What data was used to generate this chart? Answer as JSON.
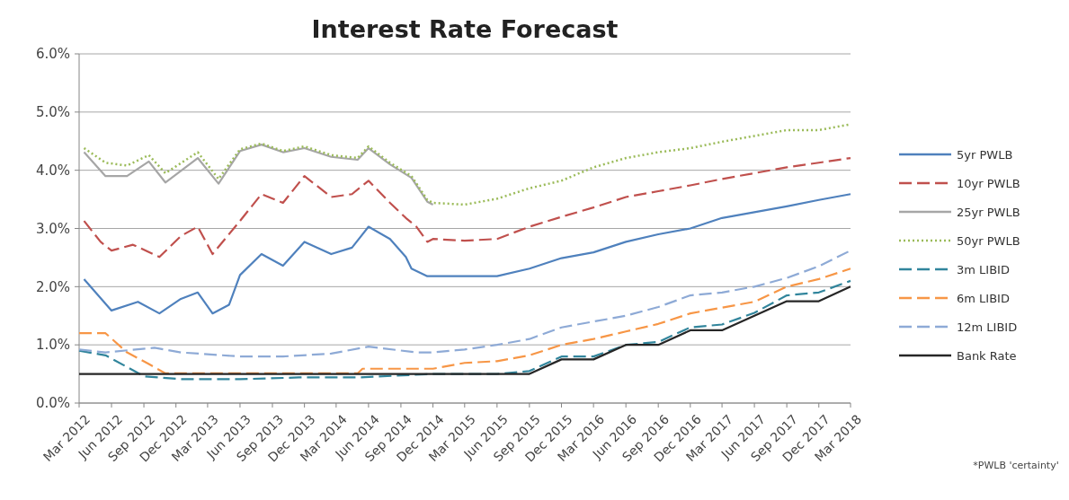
{
  "chart_data": {
    "type": "line",
    "title": "Interest Rate Forecast",
    "xlim": [
      "2012-03",
      "2018-03"
    ],
    "xticks": [
      {
        "value": "2012-03",
        "label": "Mar 2012"
      },
      {
        "value": "2012-06",
        "label": "Jun 2012"
      },
      {
        "value": "2012-09",
        "label": "Sep 2012"
      },
      {
        "value": "2012-12",
        "label": "Dec 2012"
      },
      {
        "value": "2013-03",
        "label": "Mar 2013"
      },
      {
        "value": "2013-06",
        "label": "Jun 2013"
      },
      {
        "value": "2013-09",
        "label": "Sep 2013"
      },
      {
        "value": "2013-12",
        "label": "Dec 2013"
      },
      {
        "value": "2014-03",
        "label": "Mar 2014"
      },
      {
        "value": "2014-06",
        "label": "Jun 2014"
      },
      {
        "value": "2014-09",
        "label": "Sep 2014"
      },
      {
        "value": "2014-12",
        "label": "Dec 2014"
      },
      {
        "value": "2015-03",
        "label": "Mar 2015"
      },
      {
        "value": "2015-06",
        "label": "Jun 2015"
      },
      {
        "value": "2015-09",
        "label": "Sep 2015"
      },
      {
        "value": "2015-12",
        "label": "Dec 2015"
      },
      {
        "value": "2016-03",
        "label": "Mar 2016"
      },
      {
        "value": "2016-06",
        "label": "Jun 2016"
      },
      {
        "value": "2016-09",
        "label": "Sep 2016"
      },
      {
        "value": "2016-12",
        "label": "Dec 2016"
      },
      {
        "value": "2017-03",
        "label": "Mar 2017"
      },
      {
        "value": "2017-06",
        "label": "Jun 2017"
      },
      {
        "value": "2017-09",
        "label": "Sep 2017"
      },
      {
        "value": "2017-12",
        "label": "Dec 2017"
      },
      {
        "value": "2018-03",
        "label": "Mar 2018"
      }
    ],
    "ylim": [
      0,
      6
    ],
    "yticks": [
      {
        "value": 0,
        "label": "0.0%"
      },
      {
        "value": 1,
        "label": "1.0%"
      },
      {
        "value": 2,
        "label": "2.0%"
      },
      {
        "value": 3,
        "label": "3.0%"
      },
      {
        "value": 4,
        "label": "4.0%"
      },
      {
        "value": 5,
        "label": "5.0%"
      },
      {
        "value": 6,
        "label": "6.0%"
      }
    ],
    "grid": "y",
    "legend": "right",
    "annotations": [
      "*PWLB 'certainty'"
    ],
    "series": [
      {
        "name": "5yr PWLB",
        "color": "#4f81bd",
        "line_style": "solid",
        "x": [
          "2012-03-15",
          "2012-06",
          "2012-08-15",
          "2012-10-15",
          "2012-12-15",
          "2013-02",
          "2013-03-15",
          "2013-05",
          "2013-06",
          "2013-08",
          "2013-10",
          "2013-12",
          "2014-02-15",
          "2014-04-15",
          "2014-06",
          "2014-08",
          "2014-09-15",
          "2014-10",
          "2014-11-15",
          "2014-12",
          "2015-03",
          "2015-06",
          "2015-09",
          "2015-12",
          "2016-03",
          "2016-06",
          "2016-09",
          "2016-12",
          "2017-03",
          "2017-06",
          "2017-09",
          "2017-12",
          "2018-03"
        ],
        "values": [
          2.13,
          1.59,
          1.74,
          1.54,
          1.79,
          1.9,
          1.54,
          1.69,
          2.2,
          2.56,
          2.36,
          2.77,
          2.56,
          2.67,
          3.03,
          2.82,
          2.51,
          2.31,
          2.18,
          2.18,
          2.18,
          2.18,
          2.31,
          2.49,
          2.59,
          2.77,
          2.9,
          3.0,
          3.18,
          3.28,
          3.38,
          3.49,
          3.59
        ]
      },
      {
        "name": "10yr PWLB",
        "color": "#c0504d",
        "line_style": "dashed",
        "x": [
          "2012-03-15",
          "2012-05",
          "2012-06",
          "2012-08",
          "2012-10-15",
          "2012-12-15",
          "2013-02",
          "2013-03-15",
          "2013-06",
          "2013-08",
          "2013-10",
          "2013-12",
          "2014-02-15",
          "2014-04-15",
          "2014-06",
          "2014-08",
          "2014-09-15",
          "2014-10-15",
          "2014-11-15",
          "2014-12",
          "2015-03",
          "2015-06",
          "2015-09",
          "2015-12",
          "2016-03",
          "2016-06",
          "2016-09",
          "2016-12",
          "2017-03",
          "2017-06",
          "2017-09",
          "2017-12",
          "2018-03"
        ],
        "values": [
          3.13,
          2.77,
          2.62,
          2.72,
          2.51,
          2.87,
          3.03,
          2.56,
          3.13,
          3.59,
          3.44,
          3.9,
          3.54,
          3.59,
          3.82,
          3.44,
          3.18,
          3.03,
          2.77,
          2.82,
          2.79,
          2.82,
          3.03,
          3.2,
          3.36,
          3.54,
          3.64,
          3.74,
          3.85,
          3.95,
          4.05,
          4.13,
          4.21
        ]
      },
      {
        "name": "25yr PWLB",
        "color": "#a6a6a6",
        "line_style": "solid",
        "x": [
          "2012-03-15",
          "2012-05-15",
          "2012-07-15",
          "2012-09-15",
          "2012-11",
          "2013-02",
          "2013-04",
          "2013-06",
          "2013-08",
          "2013-10",
          "2013-12",
          "2014-02-15",
          "2014-05",
          "2014-06",
          "2014-08",
          "2014-10",
          "2014-11-15",
          "2014-12"
        ],
        "values": [
          4.31,
          3.9,
          3.9,
          4.15,
          3.79,
          4.21,
          3.77,
          4.33,
          4.44,
          4.31,
          4.38,
          4.23,
          4.18,
          4.38,
          4.1,
          3.87,
          3.46,
          3.41
        ]
      },
      {
        "name": "50yr PWLB",
        "color": "#9bbb59",
        "line_style": "dotted",
        "x": [
          "2012-03-15",
          "2012-05-15",
          "2012-07-15",
          "2012-09-15",
          "2012-11",
          "2013-02",
          "2013-04",
          "2013-06",
          "2013-08",
          "2013-10",
          "2013-12",
          "2014-02-15",
          "2014-05",
          "2014-06",
          "2014-08",
          "2014-10",
          "2014-11-15",
          "2014-12",
          "2015-03",
          "2015-06",
          "2015-09",
          "2015-12",
          "2016-03",
          "2016-06",
          "2016-09",
          "2016-12",
          "2017-03",
          "2017-06",
          "2017-09",
          "2017-12",
          "2018-03"
        ],
        "values": [
          4.38,
          4.13,
          4.08,
          4.26,
          3.95,
          4.31,
          3.85,
          4.36,
          4.46,
          4.33,
          4.41,
          4.26,
          4.21,
          4.41,
          4.13,
          3.9,
          3.49,
          3.44,
          3.41,
          3.51,
          3.69,
          3.82,
          4.05,
          4.21,
          4.31,
          4.38,
          4.49,
          4.59,
          4.69,
          4.69,
          4.79
        ]
      },
      {
        "name": "3m LIBID",
        "color": "#31859c",
        "line_style": "dashed",
        "x": [
          "2012-03",
          "2012-05-15",
          "2012-07-15",
          "2012-09",
          "2012-12-15",
          "2013-06",
          "2013-11-15",
          "2014-05",
          "2014-12",
          "2015-03",
          "2015-06",
          "2015-09",
          "2015-12",
          "2016-03",
          "2016-06",
          "2016-09",
          "2016-12",
          "2017-03",
          "2017-06",
          "2017-09",
          "2017-12",
          "2018-03"
        ],
        "values": [
          0.9,
          0.82,
          0.62,
          0.46,
          0.41,
          0.41,
          0.44,
          0.44,
          0.5,
          0.5,
          0.5,
          0.55,
          0.8,
          0.8,
          1.0,
          1.05,
          1.3,
          1.35,
          1.55,
          1.85,
          1.9,
          2.1
        ]
      },
      {
        "name": "6m LIBID",
        "color": "#f79646",
        "line_style": "dashed",
        "x": [
          "2012-03",
          "2012-05-15",
          "2012-07-15",
          "2012-09-15",
          "2012-11",
          "2014-05",
          "2014-05-15",
          "2014-12",
          "2015-03",
          "2015-06",
          "2015-09",
          "2015-12",
          "2016-03",
          "2016-06",
          "2016-09",
          "2016-12",
          "2017-03",
          "2017-06",
          "2017-09",
          "2017-12",
          "2018-03"
        ],
        "values": [
          1.2,
          1.2,
          0.87,
          0.67,
          0.51,
          0.51,
          0.59,
          0.59,
          0.69,
          0.72,
          0.82,
          1.0,
          1.1,
          1.23,
          1.36,
          1.54,
          1.64,
          1.74,
          2.0,
          2.13,
          2.31
        ]
      },
      {
        "name": "12m LIBID",
        "color": "#8eaad6",
        "line_style": "dashed",
        "x": [
          "2012-03",
          "2012-05-15",
          "2012-10",
          "2012-12-15",
          "2013-06",
          "2013-10",
          "2014-02-15",
          "2014-06",
          "2014-10-15",
          "2014-12",
          "2015-03",
          "2015-06",
          "2015-09",
          "2015-12",
          "2016-03",
          "2016-06",
          "2016-09",
          "2016-12",
          "2017-03",
          "2017-06",
          "2017-09",
          "2017-12",
          "2018-03"
        ],
        "values": [
          0.92,
          0.87,
          0.95,
          0.87,
          0.8,
          0.8,
          0.85,
          0.97,
          0.87,
          0.87,
          0.92,
          1.0,
          1.1,
          1.3,
          1.4,
          1.5,
          1.65,
          1.85,
          1.9,
          2.0,
          2.15,
          2.35,
          2.62
        ]
      },
      {
        "name": "Bank Rate",
        "color": "#262626",
        "line_style": "solid",
        "x": [
          "2012-03",
          "2015-09",
          "2015-12",
          "2016-03",
          "2016-06",
          "2016-09",
          "2016-12",
          "2017-03",
          "2017-06",
          "2017-09",
          "2017-12",
          "2018-03"
        ],
        "values": [
          0.5,
          0.5,
          0.75,
          0.75,
          1.0,
          1.0,
          1.25,
          1.25,
          1.5,
          1.75,
          1.75,
          2.0
        ]
      }
    ]
  }
}
